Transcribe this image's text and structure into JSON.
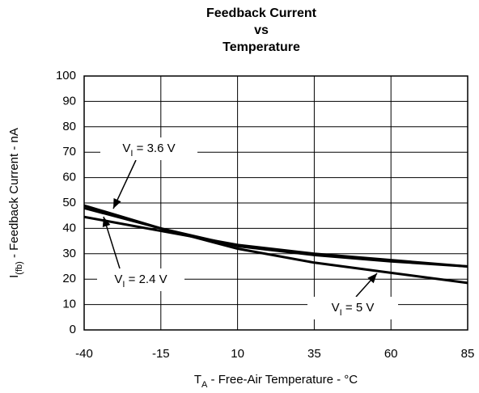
{
  "chart_data": {
    "type": "line",
    "title": [
      "Feedback Current",
      "vs",
      "Temperature"
    ],
    "xlabel": [
      "T",
      "A",
      " - Free-Air Temperature - °C"
    ],
    "ylabel": [
      "I",
      "(fb)",
      " - Feedback Current - nA"
    ],
    "x": [
      -40,
      -15,
      10,
      35,
      60,
      85
    ],
    "series": [
      {
        "name": [
          "V",
          "I",
          " = 3.6 V"
        ],
        "color": "#000000",
        "values": [
          49,
          40,
          33,
          29.5,
          27,
          25
        ]
      },
      {
        "name": [
          "V",
          "I",
          " = 2.4 V"
        ],
        "color": "#000000",
        "values": [
          44.5,
          39,
          33.5,
          30,
          27.5,
          25
        ]
      },
      {
        "name": [
          "V",
          "I",
          " = 5 V"
        ],
        "color": "#000000",
        "values": [
          48,
          40,
          32,
          26.5,
          22.5,
          18.5
        ]
      }
    ],
    "xlim": [
      -40,
      85
    ],
    "xticks": [
      -40,
      -15,
      10,
      35,
      60,
      85
    ],
    "ylim": [
      0,
      100
    ],
    "yticks": [
      0,
      10,
      20,
      30,
      40,
      50,
      60,
      70,
      80,
      90,
      100
    ],
    "grid": true
  }
}
